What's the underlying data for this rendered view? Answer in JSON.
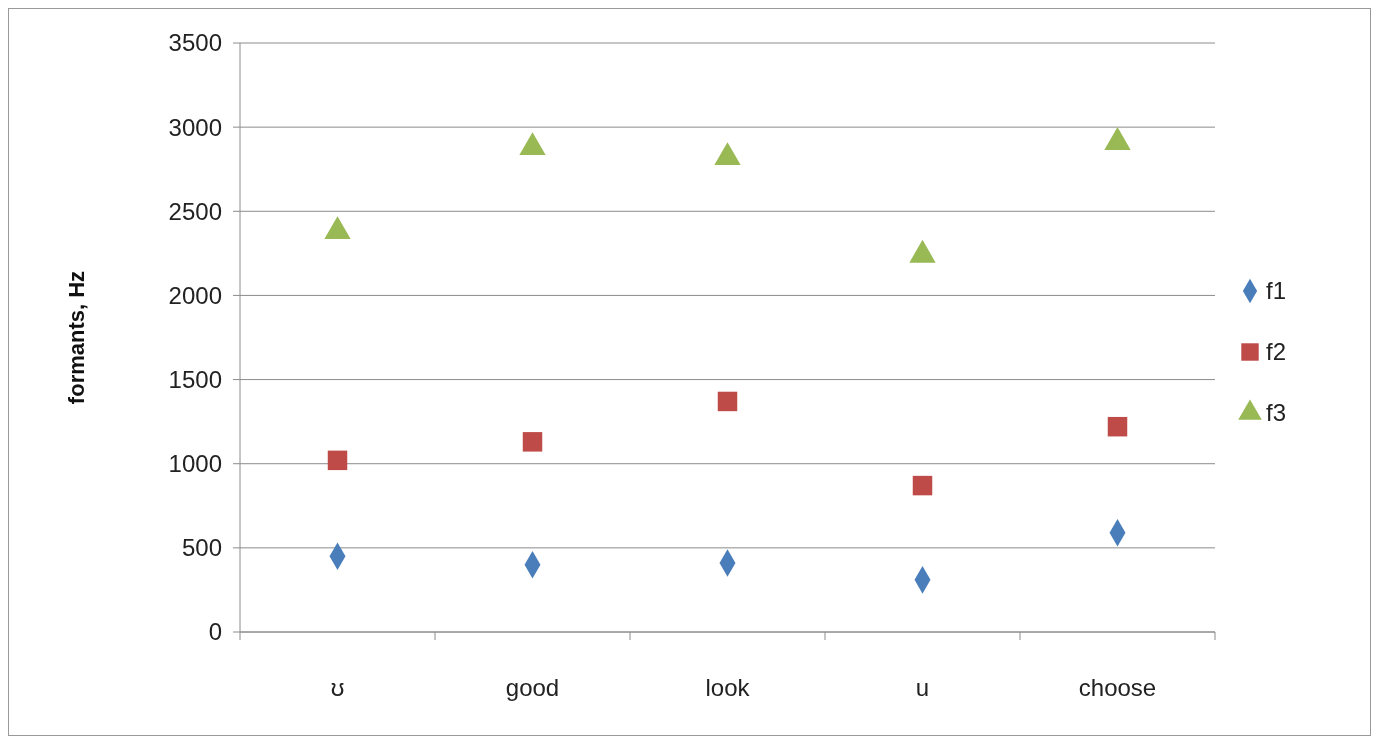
{
  "chart_data": {
    "type": "scatter",
    "ylabel": "formants, Hz",
    "categories": [
      "ʊ",
      "good",
      "look",
      "u",
      "choose"
    ],
    "series": [
      {
        "name": "f1",
        "color": "#4a7ebb",
        "marker": "diamond",
        "values": [
          450,
          400,
          410,
          310,
          590
        ]
      },
      {
        "name": "f2",
        "color": "#be4b48",
        "marker": "square",
        "values": [
          1020,
          1130,
          1370,
          870,
          1220
        ]
      },
      {
        "name": "f3",
        "color": "#98b954",
        "marker": "triangle",
        "values": [
          2380,
          2880,
          2820,
          2240,
          2910
        ]
      }
    ],
    "ylim": [
      0,
      3500
    ],
    "yticks": [
      0,
      500,
      1000,
      1500,
      2000,
      2500,
      3000,
      3500
    ],
    "grid": "y",
    "legend": "right"
  }
}
